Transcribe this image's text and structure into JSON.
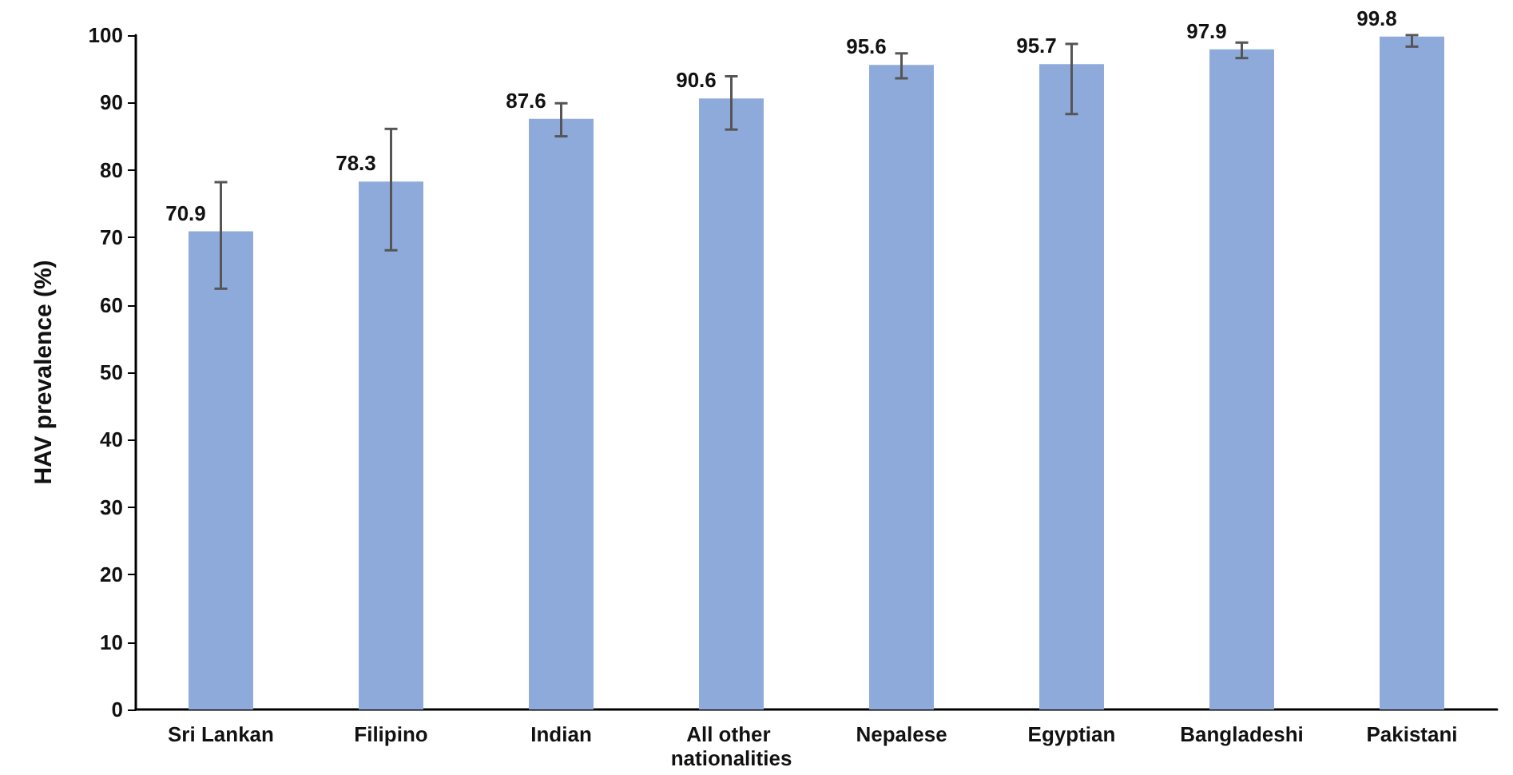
{
  "chart_data": {
    "type": "bar",
    "ylabel": "HAV prevalence (%)",
    "categories": [
      "Sri Lankan",
      "Filipino",
      "Indian",
      "All other nationalities",
      "Nepalese",
      "Egyptian",
      "Bangladeshi",
      "Pakistani"
    ],
    "values": [
      70.9,
      78.3,
      87.6,
      90.6,
      95.6,
      95.7,
      97.9,
      99.8
    ],
    "errors": [
      [
        62.4,
        78.2
      ],
      [
        68.1,
        86.1
      ],
      [
        85.0,
        89.9
      ],
      [
        86.0,
        93.9
      ],
      [
        93.6,
        97.3
      ],
      [
        88.3,
        98.7
      ],
      [
        96.6,
        98.9
      ],
      [
        98.3,
        100
      ]
    ],
    "color": "#8eaadb",
    "ylim": [
      0,
      100
    ],
    "yticks": [
      0,
      10,
      20,
      30,
      40,
      50,
      60,
      70,
      80,
      90,
      100
    ],
    "grid": false,
    "data_labels": true
  }
}
